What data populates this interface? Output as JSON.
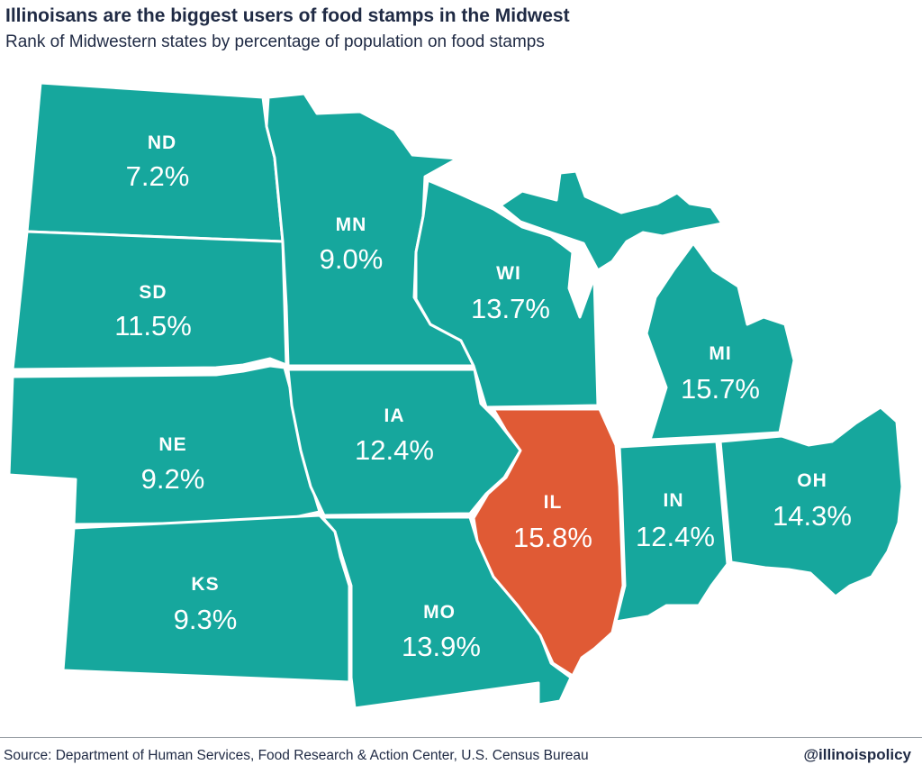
{
  "header": {
    "title": "Illinoisans are the biggest users of food stamps in the Midwest",
    "subtitle": "Rank of Midwestern states by percentage of population on food stamps"
  },
  "colors": {
    "base_state": "#16a79d",
    "highlight_state": "#e05a35",
    "border": "#ffffff",
    "text": "#1f2a44"
  },
  "states": [
    {
      "code": "ND",
      "value": "7.2%",
      "highlighted": false
    },
    {
      "code": "SD",
      "value": "11.5%",
      "highlighted": false
    },
    {
      "code": "NE",
      "value": "9.2%",
      "highlighted": false
    },
    {
      "code": "KS",
      "value": "9.3%",
      "highlighted": false
    },
    {
      "code": "MN",
      "value": "9.0%",
      "highlighted": false
    },
    {
      "code": "IA",
      "value": "12.4%",
      "highlighted": false
    },
    {
      "code": "MO",
      "value": "13.9%",
      "highlighted": false
    },
    {
      "code": "WI",
      "value": "13.7%",
      "highlighted": false
    },
    {
      "code": "IL",
      "value": "15.8%",
      "highlighted": true
    },
    {
      "code": "MI",
      "value": "15.7%",
      "highlighted": false
    },
    {
      "code": "IN",
      "value": "12.4%",
      "highlighted": false
    },
    {
      "code": "OH",
      "value": "14.3%",
      "highlighted": false
    }
  ],
  "footer": {
    "source": "Source: Department of Human Services, Food Research & Action Center, U.S. Census Bureau",
    "handle": "@illinoispolicy"
  }
}
